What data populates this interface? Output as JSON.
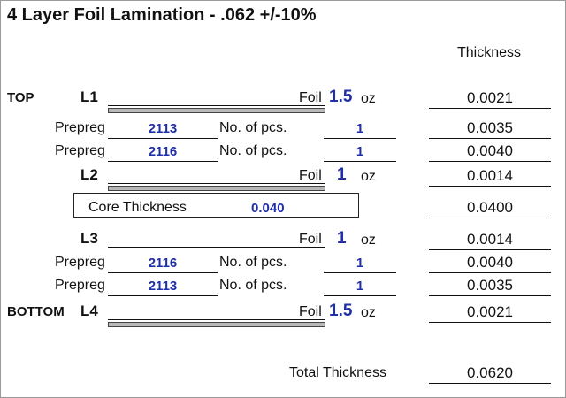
{
  "title": "4 Layer Foil Lamination - .062 +/-10%",
  "thickness_header": "Thickness",
  "rows": {
    "l1": {
      "side": "TOP",
      "layer": "L1",
      "foil_label": "Foil",
      "foil_value": "1.5",
      "unit": "oz",
      "thickness": "0.0021"
    },
    "p1": {
      "label": "Prepreg",
      "type": "2113",
      "pcs_label": "No. of pcs.",
      "pcs": "1",
      "thickness": "0.0035"
    },
    "p2": {
      "label": "Prepreg",
      "type": "2116",
      "pcs_label": "No. of pcs.",
      "pcs": "1",
      "thickness": "0.0040"
    },
    "l2": {
      "layer": "L2",
      "foil_label": "Foil",
      "foil_value": "1",
      "unit": "oz",
      "thickness": "0.0014"
    },
    "core": {
      "label": "Core Thickness",
      "value": "0.040",
      "thickness": "0.0400"
    },
    "l3": {
      "layer": "L3",
      "foil_label": "Foil",
      "foil_value": "1",
      "unit": "oz",
      "thickness": "0.0014"
    },
    "p3": {
      "label": "Prepreg",
      "type": "2116",
      "pcs_label": "No. of pcs.",
      "pcs": "1",
      "thickness": "0.0040"
    },
    "p4": {
      "label": "Prepreg",
      "type": "2113",
      "pcs_label": "No. of pcs.",
      "pcs": "1",
      "thickness": "0.0035"
    },
    "l4": {
      "side": "BOTTOM",
      "layer": "L4",
      "foil_label": "Foil",
      "foil_value": "1.5",
      "unit": "oz",
      "thickness": "0.0021"
    }
  },
  "total": {
    "label": "Total Thickness",
    "value": "0.0620"
  },
  "colors": {
    "value_blue": "#1f2fa8",
    "layer_bar": "#b8b8b8"
  }
}
